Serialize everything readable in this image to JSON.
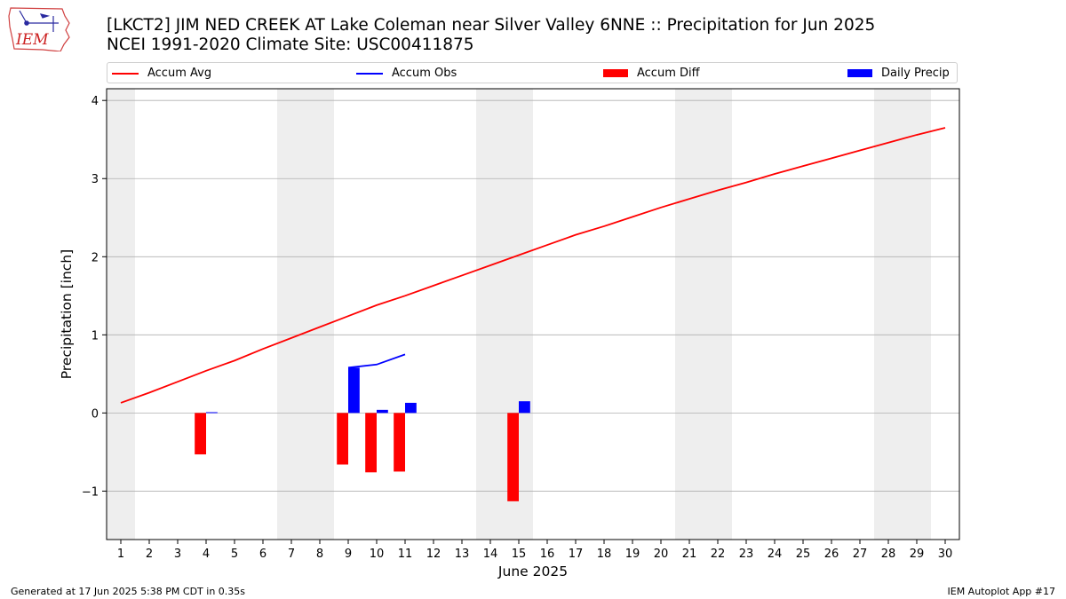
{
  "header": {
    "title_line1": "[LKCT2] JIM NED CREEK  AT Lake Coleman near Silver Valley 6NNE :: Precipitation for Jun 2025",
    "title_line2": "NCEI 1991-2020 Climate Site: USC00411875"
  },
  "logo": {
    "text": "IEM"
  },
  "footer": {
    "generated": "Generated at 17 Jun 2025 5:38 PM CDT in 0.35s",
    "app": "IEM Autoplot App #17"
  },
  "colors": {
    "accum_avg": "#ff0000",
    "accum_obs": "#0000ff",
    "accum_diff": "#ff0000",
    "daily_precip": "#0000ff",
    "weekend_band": "#eeeeee",
    "grid": "#b0b0b0"
  },
  "legend": {
    "items": [
      {
        "label": "Accum Avg",
        "kind": "line",
        "color": "#ff0000"
      },
      {
        "label": "Accum Obs",
        "kind": "line",
        "color": "#0000ff"
      },
      {
        "label": "Accum Diff",
        "kind": "bar",
        "color": "#ff0000"
      },
      {
        "label": "Daily Precip",
        "kind": "bar",
        "color": "#0000ff"
      }
    ]
  },
  "chart_data": {
    "type": "line",
    "xlabel": "June 2025",
    "ylabel": "Precipitation [inch]",
    "xlim": [
      0.5,
      30.5
    ],
    "ylim": [
      -1.62,
      4.15
    ],
    "yticks": [
      -1,
      0,
      1,
      2,
      3,
      4
    ],
    "ytick_labels": [
      "−1",
      "0",
      "1",
      "2",
      "3",
      "4"
    ],
    "xticks": [
      1,
      2,
      3,
      4,
      5,
      6,
      7,
      8,
      9,
      10,
      11,
      12,
      13,
      14,
      15,
      16,
      17,
      18,
      19,
      20,
      21,
      22,
      23,
      24,
      25,
      26,
      27,
      28,
      29,
      30
    ],
    "grid": "horizontal",
    "legend_position": "top",
    "weekend_days": [
      1,
      7,
      8,
      14,
      15,
      21,
      22,
      28,
      29
    ],
    "series": [
      {
        "name": "Accum Avg",
        "kind": "line",
        "x": [
          1,
          2,
          3,
          4,
          5,
          6,
          7,
          8,
          9,
          10,
          11,
          12,
          13,
          14,
          15,
          16,
          17,
          18,
          19,
          20,
          21,
          22,
          23,
          24,
          25,
          26,
          27,
          28,
          29,
          30
        ],
        "values": [
          0.13,
          0.26,
          0.4,
          0.54,
          0.67,
          0.82,
          0.96,
          1.1,
          1.24,
          1.38,
          1.5,
          1.63,
          1.76,
          1.89,
          2.02,
          2.15,
          2.28,
          2.39,
          2.51,
          2.63,
          2.74,
          2.85,
          2.95,
          3.06,
          3.16,
          3.26,
          3.36,
          3.46,
          3.56,
          3.65
        ]
      },
      {
        "name": "Accum Obs",
        "kind": "line",
        "x": [
          9,
          10,
          11
        ],
        "values": [
          0.58,
          0.62,
          0.75
        ]
      },
      {
        "name": "Accum Diff",
        "kind": "bar",
        "x": [
          4,
          9,
          10,
          11,
          15
        ],
        "values": [
          -0.53,
          -0.66,
          -0.76,
          -0.75,
          -1.13
        ]
      },
      {
        "name": "Daily Precip",
        "kind": "bar",
        "x": [
          4,
          9,
          10,
          11,
          15
        ],
        "values": [
          0.01,
          0.58,
          0.04,
          0.13,
          0.15
        ]
      }
    ]
  }
}
